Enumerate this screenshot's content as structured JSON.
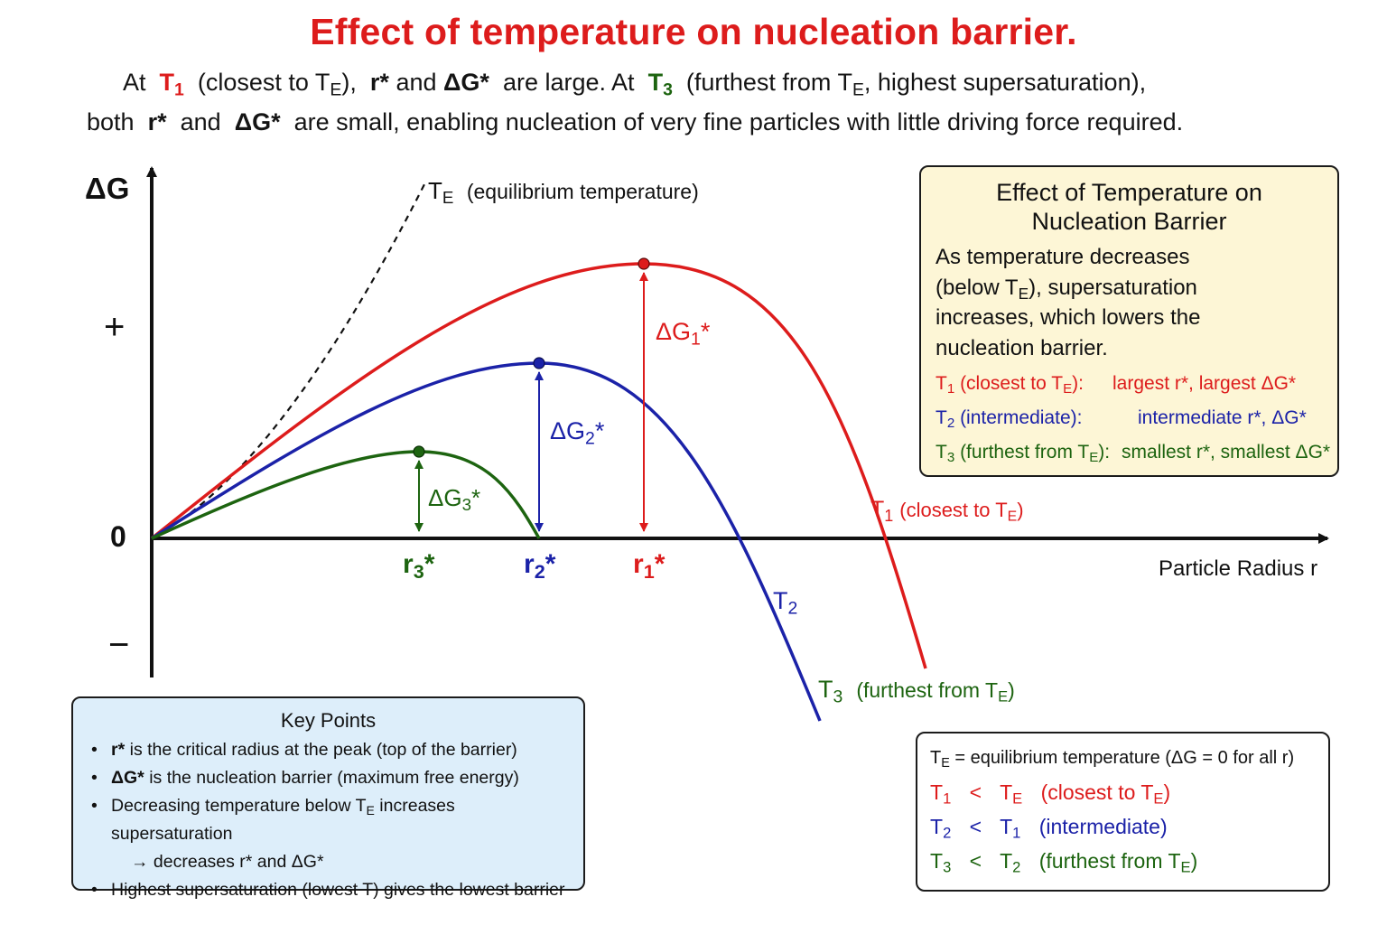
{
  "title": "Effect of temperature on nucleation barrier.",
  "subtitle": {
    "line1": {
      "at1": "At",
      "t1": "T",
      "t1_sub": "1",
      "p1": "(closest to T",
      "p1_sub": "E",
      "p1_end": "),",
      "r": "r*",
      "and": "and",
      "dg": "ΔG*",
      "p2": "are large.  At",
      "t3": "T",
      "t3_sub": "3",
      "p3": "(furthest from  T",
      "p3_sub": "E",
      "p3_end": ", highest supersaturation),"
    },
    "line2": {
      "p1": "both",
      "r": "r*",
      "and": "and",
      "dg": "ΔG*",
      "p2": "are small, enabling nucleation of very fine particles with little driving force required."
    }
  },
  "axes": {
    "y_label": "ΔG",
    "x_label": "Particle Radius r",
    "plus": "+",
    "zero": "0",
    "minus": "−"
  },
  "curves": {
    "te_label": "T",
    "te_sub": "E",
    "te_desc": "(equilibrium temperature)",
    "t1_label": "T",
    "t1_sub": "1",
    "t1_desc": "(closest to T",
    "t1_desc_sub": "E",
    "t1_desc_end": ")",
    "t2_label": "T",
    "t2_sub": "2",
    "t3_label": "T",
    "t3_sub": "3",
    "t3_desc": "(furthest from T",
    "t3_desc_sub": "E",
    "t3_desc_end": ")"
  },
  "barriers": {
    "dg1": "ΔG",
    "dg1_sub": "1",
    "dg1_star": "*",
    "dg2": "ΔG",
    "dg2_sub": "2",
    "dg2_star": "*",
    "dg3": "ΔG",
    "dg3_sub": "3",
    "dg3_star": "*"
  },
  "radii": {
    "r1": "r",
    "r1_sub": "1",
    "r1_star": "*",
    "r2": "r",
    "r2_sub": "2",
    "r2_star": "*",
    "r3": "r",
    "r3_sub": "3",
    "r3_star": "*"
  },
  "effect_box": {
    "heading_line1": "Effect of Temperature on",
    "heading_line2": "Nucleation Barrier",
    "para_1": "As temperature decreases",
    "para_2a": "(below T",
    "para_2sub": "E",
    "para_2b": "), supersaturation",
    "para_3": "increases, which lowers the",
    "para_4": "nucleation barrier.",
    "rows": [
      {
        "t": "T",
        "sub": "1",
        "desc": " (closest to T",
        "desc_sub": "E",
        "desc_end": "):",
        "value": "largest r*,  largest ΔG*"
      },
      {
        "t": "T",
        "sub": "2",
        "desc": " (intermediate):",
        "desc_sub": "",
        "desc_end": "",
        "value": "intermediate r*,  ΔG*"
      },
      {
        "t": "T",
        "sub": "3",
        "desc": " (furthest from T",
        "desc_sub": "E",
        "desc_end": "):",
        "value": "smallest r*, smallest ΔG*"
      }
    ]
  },
  "key_points": {
    "heading": "Key Points",
    "items": [
      {
        "bold": "r*",
        "text": " is the critical radius at the peak (top of the barrier)"
      },
      {
        "bold": "ΔG*",
        "text": " is the nucleation barrier (maximum free energy)"
      },
      {
        "bold": "",
        "text": "Decreasing temperature below T",
        "sub": "E",
        "text2": " increases supersaturation"
      },
      {
        "bold": "",
        "text": "→ decreases r* and ΔG*"
      },
      {
        "bold": "",
        "text": "Highest supersaturation (lowest T) gives the lowest barrier"
      }
    ]
  },
  "legend": {
    "row0": "T",
    "row0_sub": "E",
    "row0_text": " = equilibrium temperature (ΔG = 0 for all r)",
    "row1": {
      "a": "T",
      "a_sub": "1",
      "op": "<",
      "b": "T",
      "b_sub": "E",
      "desc": "(closest to  T",
      "desc_sub": "E",
      "desc_end": ")"
    },
    "row2": {
      "a": "T",
      "a_sub": "2",
      "op": "<",
      "b": "T",
      "b_sub": "1",
      "desc": "(intermediate)"
    },
    "row3": {
      "a": "T",
      "a_sub": "3",
      "op": "<",
      "b": "T",
      "b_sub": "2",
      "desc": "(furthest from  T",
      "desc_sub": "E",
      "desc_end": ")"
    }
  },
  "colors": {
    "t1": "#dd1c1c",
    "t2": "#1b22a8",
    "t3": "#1d6410",
    "te": "#111111",
    "effect_box_bg": "#fdf6d6",
    "key_box_bg": "#ddeefa"
  }
}
